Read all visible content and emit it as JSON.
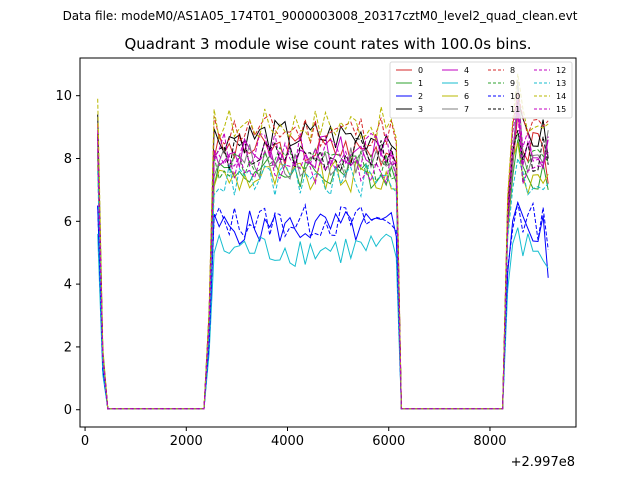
{
  "chart_data": {
    "type": "line",
    "suptitle": "Data file: modeM0/AS1A05_174T01_9000003008_20317cztM0_level2_quad_clean.evt",
    "title": "Quadrant 3 module wise count rates with 100.0s bins.",
    "xlabel": "",
    "ylabel": "",
    "x_offset_label": "+2.997e8",
    "xlim": [
      -100,
      9700
    ],
    "ylim": [
      -0.55,
      11.2
    ],
    "xticks": [
      0,
      2000,
      4000,
      6000,
      8000
    ],
    "yticks": [
      0,
      2,
      4,
      6,
      8,
      10
    ],
    "xtick_labels": [
      "0",
      "2000",
      "4000",
      "6000",
      "8000"
    ],
    "ytick_labels": [
      "0",
      "2",
      "4",
      "6",
      "8",
      "10"
    ],
    "grid": false,
    "legend_location": "upper-right",
    "x": {
      "segments": [
        {
          "start": 250,
          "end": 2350,
          "step": 100,
          "profile": "orbit-a"
        },
        {
          "start": 2350,
          "end": 6250,
          "step": 100,
          "profile": "orbit-b"
        },
        {
          "start": 6250,
          "end": 8250,
          "step": 100,
          "profile": "orbit-c"
        },
        {
          "start": 8250,
          "end": 9150,
          "step": 100,
          "profile": "orbit-d"
        }
      ]
    },
    "series": [
      {
        "name": "0",
        "color": "#d62728",
        "dash": "solid",
        "level": 8.3,
        "start": 8.8,
        "peak": 9.4,
        "low": 6.5,
        "end": 7.2
      },
      {
        "name": "1",
        "color": "#2ca02c",
        "dash": "solid",
        "level": 7.6,
        "start": 8.1,
        "peak": 8.6,
        "low": 6.9,
        "end": 7.0
      },
      {
        "name": "2",
        "color": "#0000ff",
        "dash": "solid",
        "level": 5.8,
        "start": 6.5,
        "peak": 6.6,
        "low": 5.3,
        "end": 4.2
      },
      {
        "name": "3",
        "color": "#000000",
        "dash": "solid",
        "level": 8.7,
        "start": 9.4,
        "peak": 9.9,
        "low": 8.1,
        "end": 8.0
      },
      {
        "name": "4",
        "color": "#c000c0",
        "dash": "solid",
        "level": 8.2,
        "start": 8.6,
        "peak": 9.7,
        "low": 7.5,
        "end": 8.6
      },
      {
        "name": "5",
        "color": "#17becf",
        "dash": "solid",
        "level": 5.1,
        "start": 5.6,
        "peak": 5.8,
        "low": 4.6,
        "end": 4.5
      },
      {
        "name": "6",
        "color": "#b8b800",
        "dash": "solid",
        "level": 7.4,
        "start": 7.8,
        "peak": 8.5,
        "low": 6.9,
        "end": 7.5
      },
      {
        "name": "7",
        "color": "#7f7f7f",
        "dash": "solid",
        "level": 7.9,
        "start": 8.4,
        "peak": 10.5,
        "low": 7.2,
        "end": 8.9
      },
      {
        "name": "8",
        "color": "#d62728",
        "dash": "dashed",
        "level": 8.9,
        "start": 9.1,
        "peak": 10.1,
        "low": 8.3,
        "end": 9.2
      },
      {
        "name": "9",
        "color": "#2ca02c",
        "dash": "dashed",
        "level": 7.8,
        "start": 8.2,
        "peak": 8.8,
        "low": 7.0,
        "end": 7.9
      },
      {
        "name": "10",
        "color": "#0000ff",
        "dash": "dashed",
        "level": 6.0,
        "start": 6.5,
        "peak": 6.6,
        "low": 5.5,
        "end": 5.1
      },
      {
        "name": "11",
        "color": "#000000",
        "dash": "dashed",
        "level": 8.1,
        "start": 8.7,
        "peak": 8.9,
        "low": 7.2,
        "end": 7.8
      },
      {
        "name": "12",
        "color": "#c000c0",
        "dash": "dashed",
        "level": 8.3,
        "start": 8.9,
        "peak": 9.9,
        "low": 7.5,
        "end": 8.2
      },
      {
        "name": "13",
        "color": "#17becf",
        "dash": "dashed",
        "level": 7.3,
        "start": 7.6,
        "peak": 8.0,
        "low": 6.8,
        "end": 7.2
      },
      {
        "name": "14",
        "color": "#b8b800",
        "dash": "dashed",
        "level": 9.1,
        "start": 9.9,
        "peak": 10.7,
        "low": 8.3,
        "end": 9.1
      },
      {
        "name": "15",
        "color": "#c000c0",
        "dash": "dashed",
        "level": 7.7,
        "start": 8.3,
        "peak": 9.5,
        "low": 7.2,
        "end": 8.7
      }
    ]
  }
}
